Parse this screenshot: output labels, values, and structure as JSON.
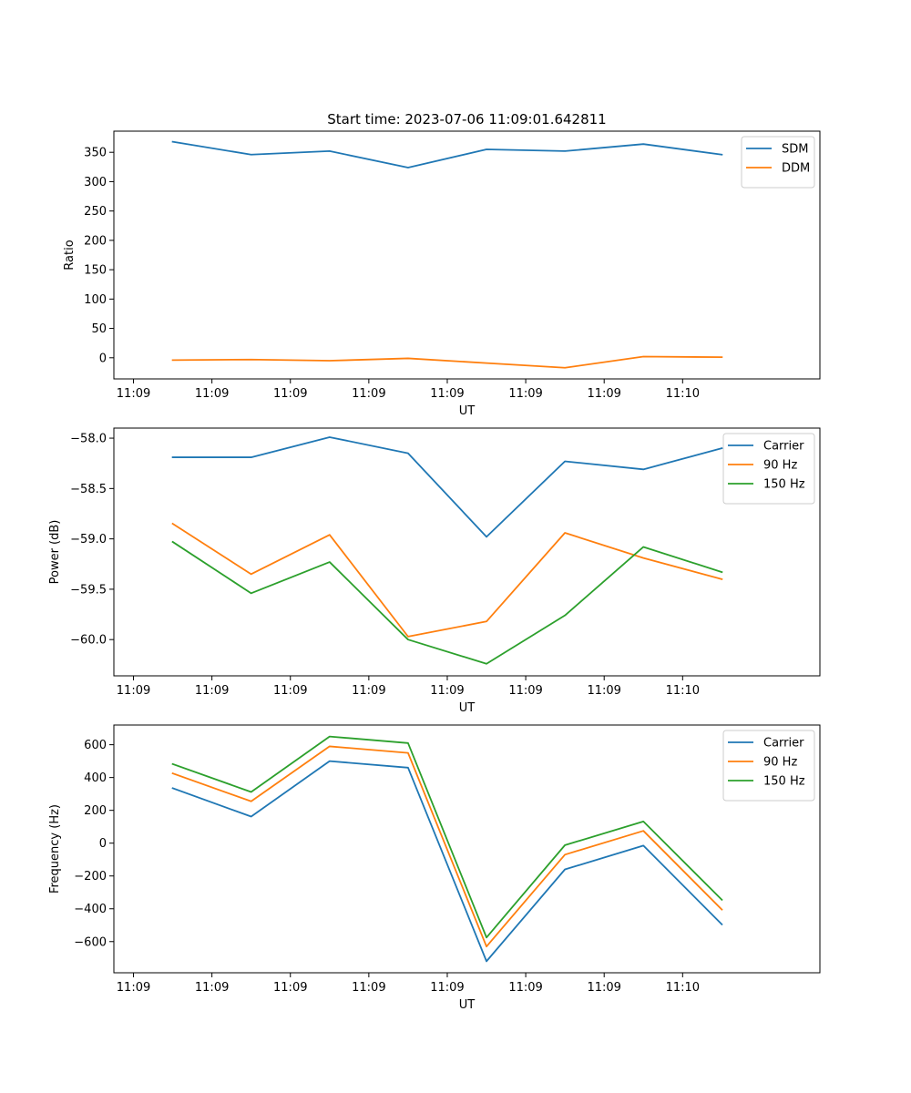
{
  "title": "Start time: 2023-07-06 11:09:01.642811",
  "x_ticks": [
    "11:09",
    "11:09",
    "11:09",
    "11:09",
    "11:09",
    "11:09",
    "11:09",
    "11:10"
  ],
  "colors": {
    "blue": "#1f77b4",
    "orange": "#ff7f0e",
    "green": "#2ca02c"
  },
  "chart_data": [
    {
      "type": "line",
      "xlabel": "UT",
      "ylabel": "Ratio",
      "ylim": [
        -36,
        386
      ],
      "yticks": [
        0,
        50,
        100,
        150,
        200,
        250,
        300,
        350
      ],
      "yticklabels": [
        "0",
        "50",
        "100",
        "150",
        "200",
        "250",
        "300",
        "350"
      ],
      "xlim": [
        -0.5,
        17.5
      ],
      "x": [
        1,
        3,
        5,
        7,
        9,
        11,
        13,
        15
      ],
      "legend": "top-right",
      "series": [
        {
          "name": "SDM",
          "color": "blue",
          "values": [
            368,
            346,
            352,
            324,
            355,
            352,
            364,
            346
          ]
        },
        {
          "name": "DDM",
          "color": "orange",
          "values": [
            -4,
            -3,
            -5,
            -1,
            -9,
            -17,
            2,
            1
          ]
        }
      ]
    },
    {
      "type": "line",
      "xlabel": "UT",
      "ylabel": "Power (dB)",
      "ylim": [
        -60.36,
        -57.9
      ],
      "yticks": [
        -60.0,
        -59.5,
        -59.0,
        -58.5,
        -58.0
      ],
      "yticklabels": [
        "−60.0",
        "−59.5",
        "−59.0",
        "−58.5",
        "−58.0"
      ],
      "xlim": [
        -0.5,
        17.5
      ],
      "x": [
        1,
        3,
        5,
        7,
        9,
        11,
        13,
        15
      ],
      "legend": "top-right",
      "series": [
        {
          "name": "Carrier",
          "color": "blue",
          "values": [
            -58.19,
            -58.19,
            -57.99,
            -58.15,
            -58.98,
            -58.23,
            -58.31,
            -58.1
          ]
        },
        {
          "name": "90 Hz",
          "color": "orange",
          "values": [
            -58.85,
            -59.35,
            -58.96,
            -59.97,
            -59.82,
            -58.94,
            -59.19,
            -59.4
          ]
        },
        {
          "name": "150 Hz",
          "color": "green",
          "values": [
            -59.03,
            -59.54,
            -59.23,
            -60.0,
            -60.24,
            -59.76,
            -59.08,
            -59.33
          ]
        }
      ]
    },
    {
      "type": "line",
      "xlabel": "UT",
      "ylabel": "Frequency (Hz)",
      "ylim": [
        -790,
        720
      ],
      "yticks": [
        -600,
        -400,
        -200,
        0,
        200,
        400,
        600
      ],
      "yticklabels": [
        "−600",
        "−400",
        "−200",
        "0",
        "200",
        "400",
        "600"
      ],
      "xlim": [
        -0.5,
        17.5
      ],
      "x": [
        1,
        3,
        5,
        7,
        9,
        11,
        13,
        15
      ],
      "legend": "top-right",
      "series": [
        {
          "name": "Carrier",
          "color": "blue",
          "values": [
            335,
            162,
            500,
            460,
            -720,
            -160,
            -15,
            -495
          ]
        },
        {
          "name": "90 Hz",
          "color": "orange",
          "values": [
            425,
            255,
            590,
            550,
            -630,
            -70,
            75,
            -405
          ]
        },
        {
          "name": "150 Hz",
          "color": "green",
          "values": [
            482,
            312,
            650,
            610,
            -575,
            -12,
            132,
            -345
          ]
        }
      ]
    }
  ]
}
